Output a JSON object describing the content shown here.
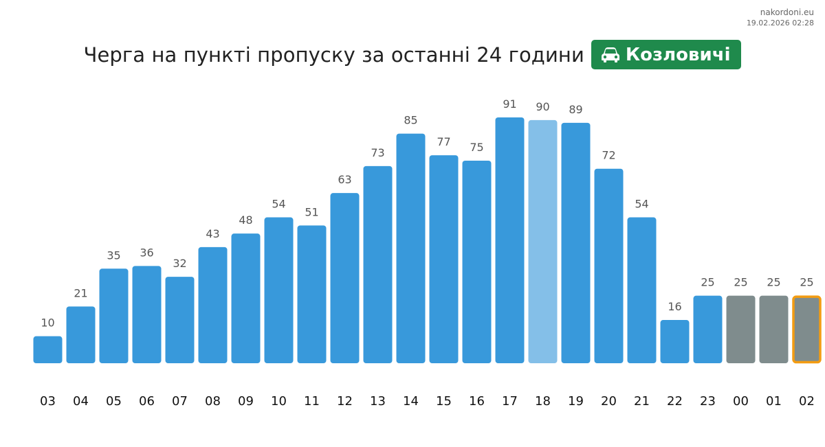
{
  "source": {
    "site": "nakordoni.eu",
    "datetime": "19.02.2026 02:28"
  },
  "header": {
    "title": "Черга на пункті пропуску за останні 24 години",
    "checkpoint": "Козловичі",
    "checkpoint_icon": "car-icon",
    "badge_color": "#1f8a4c"
  },
  "chart_data": {
    "type": "bar",
    "categories": [
      "03",
      "04",
      "05",
      "06",
      "07",
      "08",
      "09",
      "10",
      "11",
      "12",
      "13",
      "14",
      "15",
      "16",
      "17",
      "18",
      "19",
      "20",
      "21",
      "22",
      "23",
      "00",
      "01",
      "02"
    ],
    "values": [
      10,
      21,
      35,
      36,
      32,
      43,
      48,
      54,
      51,
      63,
      73,
      85,
      77,
      75,
      91,
      90,
      89,
      72,
      54,
      16,
      25,
      25,
      25,
      25
    ],
    "title": "Черга на пункті пропуску за останні 24 години",
    "xlabel": "",
    "ylabel": "",
    "ylim": [
      0,
      91
    ],
    "grid": false,
    "data_labels": true,
    "bar_colors": {
      "default": "#3899db",
      "highlight": "#84bfe8",
      "estimated": "#7f8c8d",
      "current_outline": "#f39c12"
    },
    "highlighted_categories": [
      "18"
    ],
    "estimated_categories": [
      "00",
      "01",
      "02"
    ],
    "current_category": "02"
  }
}
